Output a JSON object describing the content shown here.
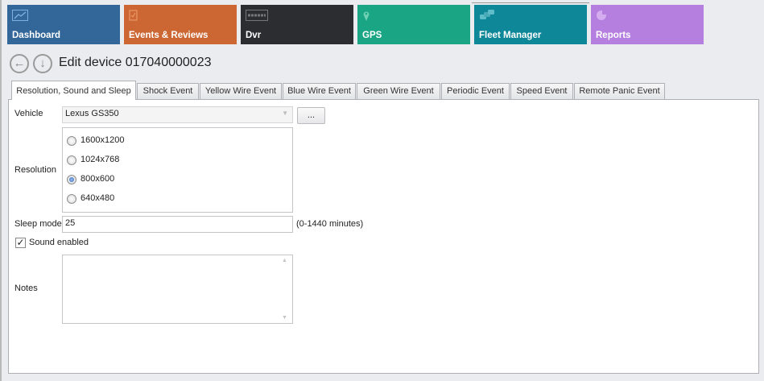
{
  "nav": {
    "tiles": [
      {
        "label": "Dashboard",
        "icon": "chart-icon",
        "color": "#336699"
      },
      {
        "label": "Events & Reviews",
        "icon": "clipboard-check-icon",
        "color": "#cc6633"
      },
      {
        "label": "Dvr",
        "icon": "dvr-logo-icon",
        "color": "#2b2d31"
      },
      {
        "label": "GPS",
        "icon": "map-pin-icon",
        "color": "#1aa585"
      },
      {
        "label": "Fleet Manager",
        "icon": "cars-icon",
        "color": "#0e8798"
      },
      {
        "label": "Reports",
        "icon": "pie-chart-icon",
        "color": "#b57fe0"
      }
    ],
    "active": "Fleet Manager"
  },
  "header": {
    "title": "Edit device 017040000023"
  },
  "tabs": [
    "Resolution, Sound and Sleep",
    "Shock Event",
    "Yellow Wire Event",
    "Blue Wire Event",
    "Green Wire Event",
    "Periodic Event",
    "Speed Event",
    "Remote Panic Event"
  ],
  "form": {
    "vehicle_label": "Vehicle",
    "vehicle_value": "Lexus GS350",
    "browse_label": "...",
    "resolution_label": "Resolution",
    "resolutions": [
      "1600x1200",
      "1024x768",
      "800x600",
      "640x480"
    ],
    "resolution_selected": "800x600",
    "sleep_label": "Sleep mode",
    "sleep_value": "25",
    "sleep_hint": "(0-1440 minutes)",
    "sound_label": "Sound enabled",
    "sound_checked": true,
    "notes_label": "Notes",
    "notes_value": ""
  }
}
